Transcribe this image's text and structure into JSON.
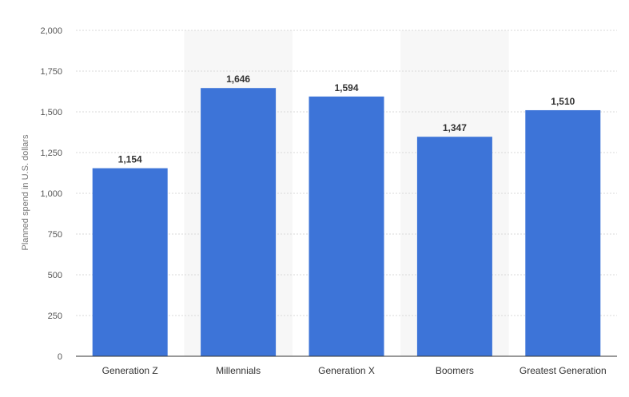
{
  "chart_data": {
    "type": "bar",
    "categories": [
      "Generation Z",
      "Millennials",
      "Generation X",
      "Boomers",
      "Greatest Generation"
    ],
    "values": [
      1154,
      1646,
      1594,
      1347,
      1510
    ],
    "value_labels": [
      "1,154",
      "1,646",
      "1,594",
      "1,347",
      "1,510"
    ],
    "ylabel": "Planned spend in U.S. dollars",
    "ylim": [
      0,
      2000
    ],
    "yticks": [
      0,
      250,
      500,
      750,
      1000,
      1250,
      1500,
      1750,
      2000
    ],
    "ytick_labels": [
      "0",
      "250",
      "500",
      "750",
      "1,000",
      "1,250",
      "1,500",
      "1,750",
      "2,000"
    ],
    "grid": true,
    "bar_color": "#3d74d8",
    "band_color": "#f7f7f7"
  }
}
